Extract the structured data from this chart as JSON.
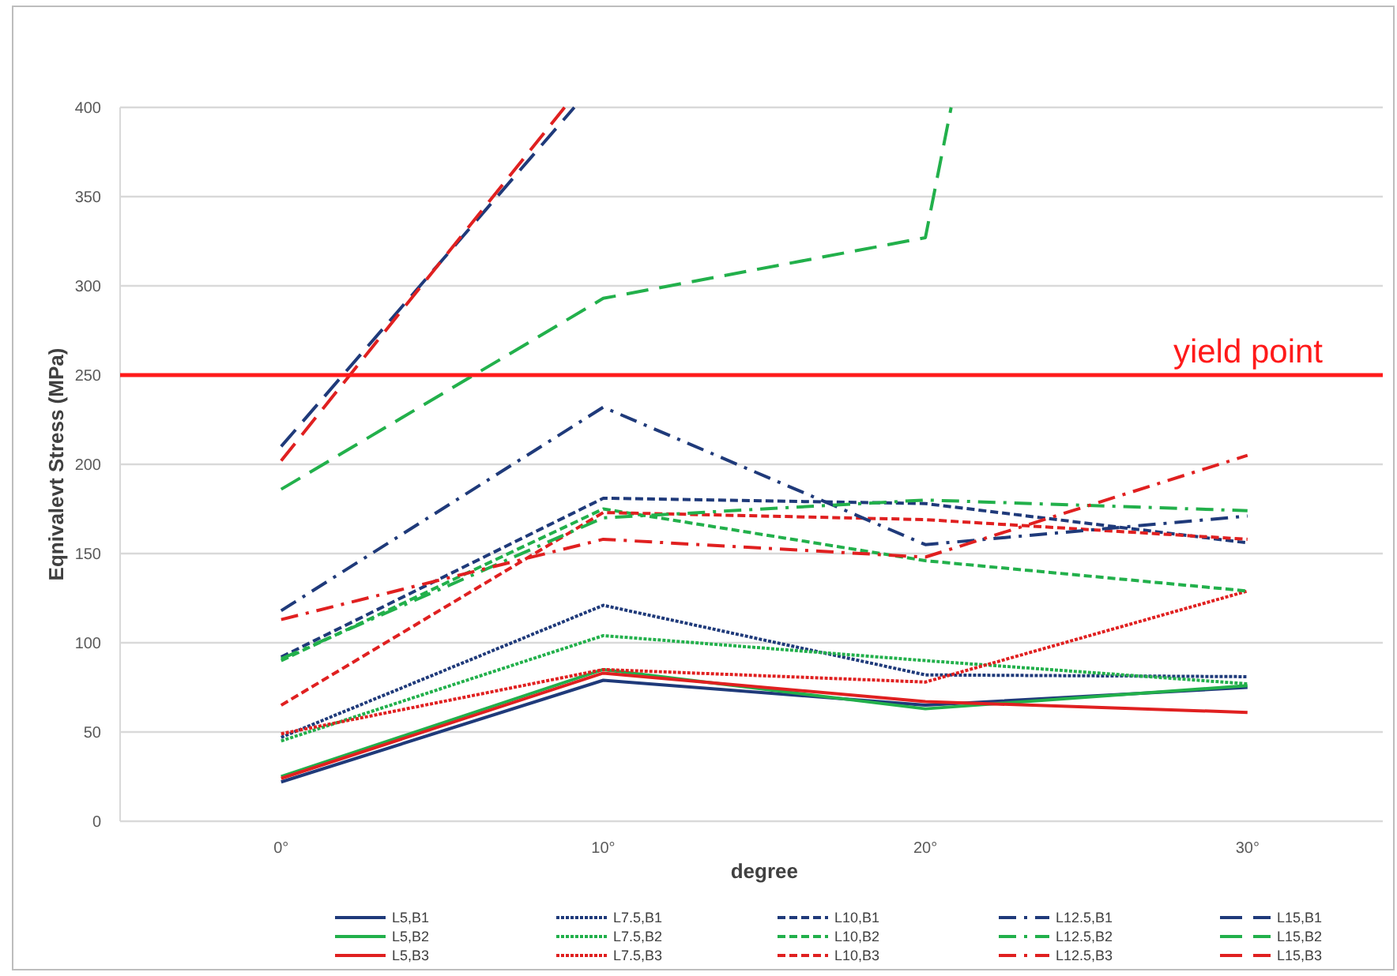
{
  "chart_data": {
    "type": "line",
    "xlabel": "degree",
    "ylabel": "Eqnivalevt Stress  (MPa)",
    "x": [
      0,
      10,
      20,
      30
    ],
    "xlim": [
      -5,
      34.2
    ],
    "xticks": [
      {
        "value": 0,
        "label": "0°"
      },
      {
        "value": 10,
        "label": "10°"
      },
      {
        "value": 20,
        "label": "20°"
      },
      {
        "value": 30,
        "label": "30°"
      }
    ],
    "ylim": [
      0,
      400
    ],
    "yticks": [
      0,
      50,
      100,
      150,
      200,
      250,
      300,
      350,
      400
    ],
    "grid": "y",
    "legend": "bottom",
    "marker": "none",
    "ref_lines": [
      {
        "axis": "y",
        "value": 250,
        "label": "yield point",
        "color": "#ff1a1a"
      }
    ],
    "series": [
      {
        "name": "L5,B1",
        "color": "#1f3a7a",
        "line_style": "solid",
        "values": [
          22,
          79,
          65,
          75
        ]
      },
      {
        "name": "L5,B2",
        "color": "#22b04b",
        "line_style": "solid",
        "values": [
          25,
          85,
          63,
          76
        ]
      },
      {
        "name": "L5,B3",
        "color": "#e02020",
        "line_style": "solid",
        "values": [
          24,
          83,
          67,
          61
        ]
      },
      {
        "name": "L7.5,B1",
        "color": "#1f3a7a",
        "line_style": "dotted",
        "values": [
          47,
          121,
          82,
          81
        ]
      },
      {
        "name": "L7.5,B2",
        "color": "#22b04b",
        "line_style": "dotted",
        "values": [
          45,
          104,
          90,
          77
        ]
      },
      {
        "name": "L7.5,B3",
        "color": "#e02020",
        "line_style": "dotted",
        "values": [
          49,
          85,
          78,
          129
        ]
      },
      {
        "name": "L10,B1",
        "color": "#1f3a7a",
        "line_style": "dashed",
        "values": [
          92,
          181,
          178,
          156
        ]
      },
      {
        "name": "L10,B2",
        "color": "#22b04b",
        "line_style": "dashed",
        "values": [
          90,
          175,
          146,
          129
        ]
      },
      {
        "name": "L10,B3",
        "color": "#e02020",
        "line_style": "dashed",
        "values": [
          65,
          173,
          169,
          158
        ]
      },
      {
        "name": "L12.5,B1",
        "color": "#1f3a7a",
        "line_style": "dashdot",
        "values": [
          118,
          232,
          155,
          171
        ]
      },
      {
        "name": "L12.5,B2",
        "color": "#22b04b",
        "line_style": "dashdot",
        "values": [
          91,
          170,
          180,
          174
        ]
      },
      {
        "name": "L12.5,B3",
        "color": "#e02020",
        "line_style": "dashdot",
        "values": [
          113,
          158,
          148,
          205
        ]
      },
      {
        "name": "L15,B1",
        "color": "#1f3a7a",
        "line_style": "longdash",
        "x": [
          0,
          9.1
        ],
        "values": [
          210,
          400
        ]
      },
      {
        "name": "L15,B2",
        "color": "#22b04b",
        "line_style": "longdash",
        "x": [
          0,
          10,
          20,
          20.8
        ],
        "values": [
          186,
          293,
          327,
          400
        ]
      },
      {
        "name": "L15,B3",
        "color": "#e02020",
        "line_style": "longdash",
        "x": [
          0,
          8.8
        ],
        "values": [
          202,
          400
        ]
      }
    ]
  }
}
